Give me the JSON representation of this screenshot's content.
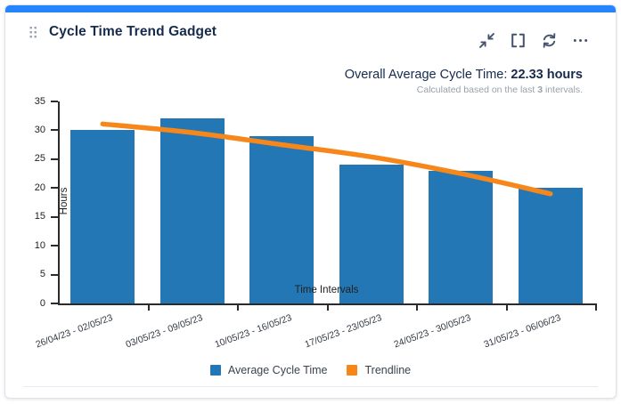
{
  "card": {
    "title": "Cycle Time Trend Gadget",
    "accent_color": "#2684FF"
  },
  "toolbar": {
    "icons": [
      "minimize",
      "expand",
      "refresh",
      "more-options"
    ]
  },
  "summary": {
    "label": "Overall Average Cycle Time: ",
    "value": "22.33 hours",
    "note_prefix": "Calculated based on the last ",
    "note_bold": "3",
    "note_suffix": " intervals."
  },
  "chart_data": {
    "type": "bar",
    "title": "",
    "categories": [
      "26/04/23 - 02/05/23",
      "03/05/23 - 09/05/23",
      "10/05/23 - 16/05/23",
      "17/05/23 - 23/05/23",
      "24/05/23 - 30/05/23",
      "31/05/23 - 06/06/23"
    ],
    "series": [
      {
        "name": "Average Cycle Time",
        "type": "bar",
        "color": "#2277B4",
        "values": [
          30,
          32,
          29,
          24,
          23,
          20
        ]
      },
      {
        "name": "Trendline",
        "type": "line",
        "color": "#F8871B",
        "values": [
          31.1,
          29.6,
          27.5,
          25.4,
          22.5,
          19.0
        ]
      }
    ],
    "xlabel": "Time Intervals",
    "ylabel": "Hours",
    "ylim": [
      0,
      35
    ],
    "yticks": [
      0,
      5,
      10,
      15,
      20,
      25,
      30,
      35
    ],
    "grid": false,
    "legend_position": "bottom"
  }
}
